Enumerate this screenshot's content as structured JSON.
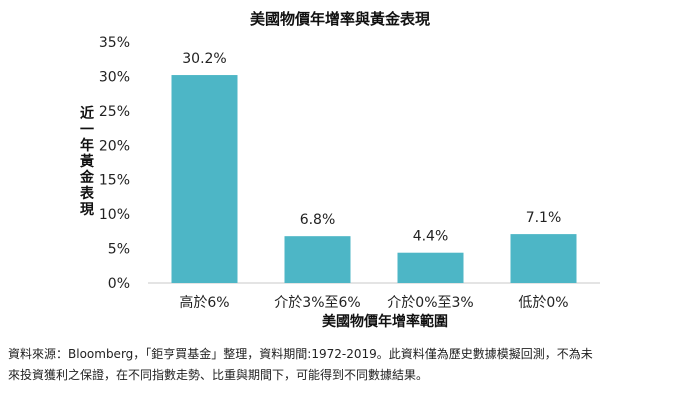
{
  "chart_data": {
    "type": "bar",
    "title": "美國物價年增率與黃金表現",
    "xlabel": "美國物價年增率範圍",
    "ylabel": "近一年黃金表現",
    "categories": [
      "高於6%",
      "介於3%至6%",
      "介於0%至3%",
      "低於0%"
    ],
    "values": [
      30.2,
      6.8,
      4.4,
      7.1
    ],
    "data_labels": [
      "30.2%",
      "6.8%",
      "4.4%",
      "7.1%"
    ],
    "ylim": [
      0,
      35
    ],
    "yticks": [
      0,
      5,
      10,
      15,
      20,
      25,
      30,
      35
    ],
    "ytick_labels": [
      "0%",
      "5%",
      "10%",
      "15%",
      "20%",
      "25%",
      "30%",
      "35%"
    ],
    "bar_color": "#4db6c6",
    "grid": false,
    "legend": "none"
  },
  "footnote": {
    "line1": "資料來源：Bloomberg，「鉅亨買基金」整理，資料期間:1972-2019。此資料僅為歷史數據模擬回測，不為未",
    "line2": "來投資獲利之保證，在不同指數走勢、比重與期間下，可能得到不同數據結果。"
  }
}
